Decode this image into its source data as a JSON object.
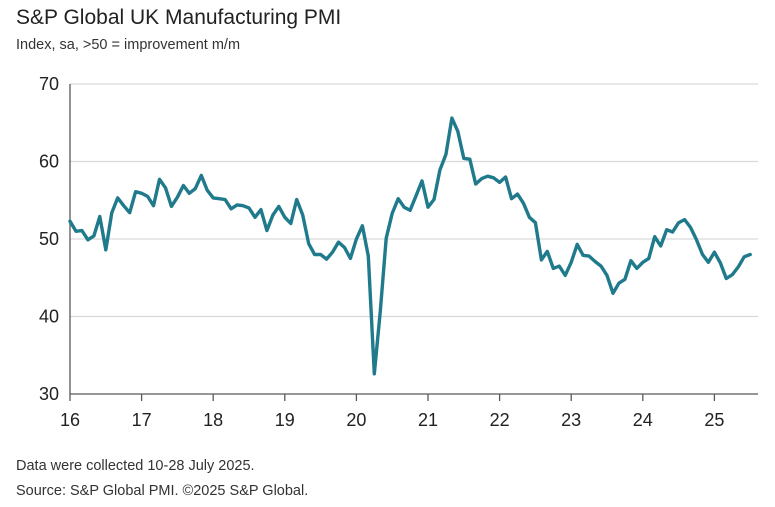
{
  "header": {
    "title": "S&P Global UK Manufacturing PMI",
    "subtitle": "Index, sa, >50 = improvement m/m"
  },
  "footer": {
    "note": "Data were collected 10-28 July 2025.",
    "source": "Source: S&P Global PMI. ©2025 S&P Global."
  },
  "colors": {
    "line": "#1f7a8c",
    "gridline": "#d9d9d9",
    "axis": "#595959"
  },
  "chart_data": {
    "type": "line",
    "title": "S&P Global UK Manufacturing PMI",
    "subtitle": "Index, sa, >50 = improvement m/m",
    "xlabel": "",
    "ylabel": "",
    "ylim": [
      30,
      70
    ],
    "yticks": [
      "30",
      "40",
      "50",
      "60",
      "70"
    ],
    "xticks": [
      "16",
      "17",
      "18",
      "19",
      "20",
      "21",
      "22",
      "23",
      "24",
      "25"
    ],
    "x_start": "2016-01",
    "x_end": "2025-07",
    "grid": "horizontal",
    "legend": "none",
    "series": [
      {
        "values": [
          52.3,
          51.0,
          51.1,
          49.9,
          50.4,
          52.9,
          48.6,
          53.4,
          55.3,
          54.3,
          53.4,
          56.1,
          55.9,
          55.5,
          54.3,
          57.7,
          56.6,
          54.2,
          55.4,
          56.9,
          55.9,
          56.5,
          58.2,
          56.3,
          55.3,
          55.2,
          55.1,
          53.9,
          54.4,
          54.3,
          54.0,
          52.8,
          53.8,
          51.1,
          53.1,
          54.2,
          52.8,
          52.0,
          55.1,
          53.1,
          49.4,
          48.0,
          48.0,
          47.4,
          48.3,
          49.6,
          48.9,
          47.5,
          50.0,
          51.7,
          47.8,
          32.6,
          40.7,
          50.1,
          53.3,
          55.2,
          54.1,
          53.7,
          55.6,
          57.5,
          54.1,
          55.1,
          58.9,
          60.9,
          65.6,
          63.9,
          60.4,
          60.3,
          57.1,
          57.8,
          58.1,
          57.9,
          57.3,
          58.0,
          55.2,
          55.8,
          54.6,
          52.8,
          52.1,
          47.3,
          48.4,
          46.2,
          46.5,
          45.3,
          47.0,
          49.3,
          47.9,
          47.8,
          47.1,
          46.5,
          45.3,
          43.0,
          44.3,
          44.8,
          47.2,
          46.2,
          47.0,
          47.5,
          50.3,
          49.1,
          51.2,
          50.9,
          52.1,
          52.5,
          51.5,
          49.9,
          48.0,
          47.0,
          48.3,
          46.9,
          44.9,
          45.4,
          46.4,
          47.7,
          48.0
        ]
      }
    ]
  }
}
